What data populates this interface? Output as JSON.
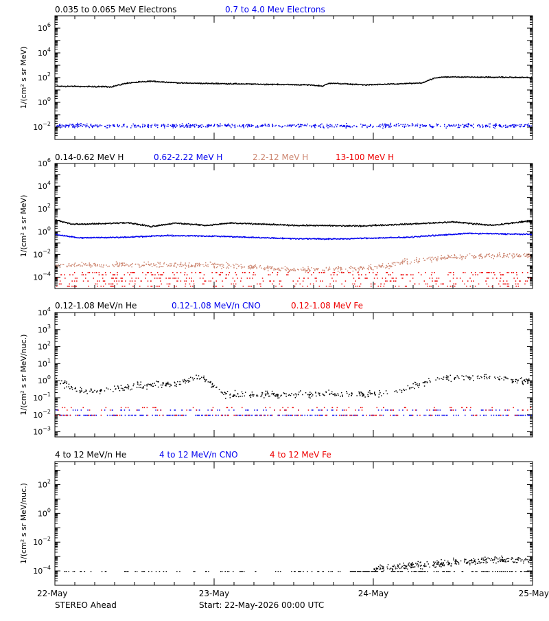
{
  "footer": {
    "spacecraft": "STEREO Ahead",
    "start": "Start: 22-May-2026 00:00 UTC"
  },
  "x_axis": {
    "tick_labels": [
      "22-May",
      "23-May",
      "24-May",
      "25-May"
    ],
    "range_days": [
      0,
      3
    ]
  },
  "colors": {
    "black": "#000000",
    "blue": "#0000ee",
    "tan": "#cd8670",
    "red": "#ee0000"
  },
  "chart_data": [
    {
      "type": "scatter",
      "ylabel": "1/(cm² s sr MeV)",
      "y_scale": "log",
      "ylim_exp": [
        -3,
        7
      ],
      "y_tick_exps": [
        -2,
        0,
        2,
        4,
        6
      ],
      "legend": [
        {
          "label": "0.035 to 0.065 MeV Electrons",
          "color": "#000000"
        },
        {
          "label": "0.7 to 4.0 Mev Electrons",
          "color": "#0000ee"
        }
      ],
      "series": [
        {
          "name": "0.035 to 0.065 MeV Electrons",
          "color": "#000000",
          "style": "dense",
          "scatter": 0.06,
          "profile": [
            [
              0,
              1.35
            ],
            [
              0.35,
              1.3
            ],
            [
              0.45,
              1.6
            ],
            [
              0.6,
              1.75
            ],
            [
              0.8,
              1.6
            ],
            [
              1.6,
              1.45
            ],
            [
              1.68,
              1.35
            ],
            [
              1.72,
              1.6
            ],
            [
              1.95,
              1.45
            ],
            [
              2.3,
              1.6
            ],
            [
              2.38,
              2.0
            ],
            [
              2.45,
              2.1
            ],
            [
              3,
              2.05
            ]
          ]
        },
        {
          "name": "0.7 to 4.0 Mev Electrons",
          "color": "#0000ee",
          "style": "sparse",
          "scatter": 0.22,
          "count": 650,
          "profile": [
            [
              0,
              -1.85
            ],
            [
              3,
              -1.85
            ]
          ]
        }
      ]
    },
    {
      "type": "scatter",
      "ylabel": "1/(cm² s sr MeV)",
      "y_scale": "log",
      "ylim_exp": [
        -5,
        6
      ],
      "y_tick_exps": [
        -4,
        -2,
        0,
        2,
        4,
        6
      ],
      "legend": [
        {
          "label": "0.14-0.62 MeV H",
          "color": "#000000"
        },
        {
          "label": "0.62-2.22 MeV H",
          "color": "#0000ee"
        },
        {
          "label": "2.2-12 MeV H",
          "color": "#cd8670"
        },
        {
          "label": "13-100 MeV H",
          "color": "#ee0000"
        }
      ],
      "series": [
        {
          "name": "0.14-0.62 MeV H",
          "color": "#000000",
          "style": "dense",
          "scatter": 0.08,
          "profile": [
            [
              0,
              1.1
            ],
            [
              0.1,
              0.7
            ],
            [
              0.3,
              0.75
            ],
            [
              0.45,
              0.85
            ],
            [
              0.6,
              0.5
            ],
            [
              0.75,
              0.8
            ],
            [
              0.95,
              0.6
            ],
            [
              1.1,
              0.8
            ],
            [
              1.5,
              0.6
            ],
            [
              1.9,
              0.55
            ],
            [
              2.2,
              0.7
            ],
            [
              2.5,
              0.9
            ],
            [
              2.75,
              0.6
            ],
            [
              2.95,
              0.95
            ],
            [
              3,
              0.9
            ]
          ]
        },
        {
          "name": "0.62-2.22 MeV H",
          "color": "#0000ee",
          "style": "dense",
          "scatter": 0.07,
          "profile": [
            [
              0,
              -0.2
            ],
            [
              0.15,
              -0.5
            ],
            [
              0.4,
              -0.45
            ],
            [
              0.7,
              -0.3
            ],
            [
              1.0,
              -0.35
            ],
            [
              1.45,
              -0.55
            ],
            [
              1.75,
              -0.6
            ],
            [
              2.2,
              -0.45
            ],
            [
              2.6,
              -0.1
            ],
            [
              3,
              -0.2
            ]
          ]
        },
        {
          "name": "2.2-12 MeV H",
          "color": "#cd8670",
          "style": "scatter",
          "scatter": 0.35,
          "count": 650,
          "profile": [
            [
              0,
              -2.9
            ],
            [
              0.6,
              -2.85
            ],
            [
              1.0,
              -2.9
            ],
            [
              1.5,
              -3.3
            ],
            [
              1.9,
              -3.25
            ],
            [
              2.05,
              -3.0
            ],
            [
              2.3,
              -2.4
            ],
            [
              2.6,
              -2.1
            ],
            [
              3,
              -2.0
            ]
          ]
        },
        {
          "name": "13-100 MeV H",
          "color": "#ee0000",
          "style": "levels",
          "count": 520,
          "levels": [
            -3.55,
            -3.75,
            -4.05,
            -4.3,
            -4.55,
            -4.75
          ],
          "profile": [
            [
              0,
              -4.0
            ],
            [
              3,
              -4.0
            ]
          ]
        }
      ]
    },
    {
      "type": "scatter",
      "ylabel": "1/(cm² s sr MeV/nuc.)",
      "y_scale": "log",
      "ylim_exp": [
        -3.3,
        4
      ],
      "y_tick_exps": [
        -3,
        -2,
        -1,
        0,
        1,
        2,
        3,
        4
      ],
      "legend": [
        {
          "label": "0.12-1.08 MeV/n He",
          "color": "#000000"
        },
        {
          "label": "0.12-1.08 MeV/n CNO",
          "color": "#0000ee"
        },
        {
          "label": "0.12-1.08 MeV Fe",
          "color": "#ee0000"
        }
      ],
      "series": [
        {
          "name": "0.12-1.08 MeV/n He",
          "color": "#000000",
          "style": "scatter",
          "scatter": 0.28,
          "count": 520,
          "floor": -1.0,
          "profile": [
            [
              0,
              0.1
            ],
            [
              0.15,
              -0.6
            ],
            [
              0.35,
              -0.5
            ],
            [
              0.5,
              -0.3
            ],
            [
              0.75,
              -0.15
            ],
            [
              0.92,
              0.3
            ],
            [
              1.05,
              -0.75
            ],
            [
              1.35,
              -0.8
            ],
            [
              1.7,
              -0.75
            ],
            [
              1.95,
              -0.8
            ],
            [
              2.15,
              -0.6
            ],
            [
              2.3,
              -0.1
            ],
            [
              2.45,
              0.2
            ],
            [
              2.75,
              0.2
            ],
            [
              2.9,
              0.0
            ],
            [
              3,
              0.05
            ]
          ]
        },
        {
          "name": "0.12-1.08 MeV/n CNO",
          "color": "#0000ee",
          "style": "levels",
          "count": 340,
          "levels": [
            -2.0,
            -2.0,
            -2.0,
            -1.7
          ],
          "profile": [
            [
              0,
              -2.0
            ],
            [
              3,
              -2.0
            ]
          ]
        },
        {
          "name": "0.12-1.08 MeV Fe",
          "color": "#ee0000",
          "style": "levels",
          "count": 180,
          "levels": [
            -2.0,
            -2.0,
            -1.7,
            -1.55
          ],
          "profile": [
            [
              0,
              -2.0
            ],
            [
              3,
              -2.0
            ]
          ]
        }
      ]
    },
    {
      "type": "scatter",
      "ylabel": "1/(cm² s sr MeV/nuc.)",
      "y_scale": "log",
      "ylim_exp": [
        -5,
        3.6
      ],
      "y_tick_exps": [
        -4,
        -2,
        0,
        2
      ],
      "legend": [
        {
          "label": "4 to 12 MeV/n He",
          "color": "#000000"
        },
        {
          "label": "4 to 12 MeV/n CNO",
          "color": "#0000ee"
        },
        {
          "label": "4 to 12 MeV Fe",
          "color": "#ee0000"
        }
      ],
      "series": [
        {
          "name": "4 to 12 MeV/n He",
          "color": "#000000",
          "style": "late",
          "count": 520,
          "levels": [
            -4.0,
            -4.0,
            -3.7,
            -3.5,
            -3.35
          ],
          "profile": [
            [
              0,
              -4.0
            ],
            [
              1.8,
              -4.0
            ],
            [
              2.1,
              -3.7
            ],
            [
              2.4,
              -3.5
            ],
            [
              2.7,
              -3.2
            ],
            [
              3,
              -3.2
            ]
          ]
        },
        {
          "name": "4 to 12 MeV/n CNO",
          "color": "#0000ee",
          "style": "levels",
          "count": 8,
          "levels": [
            -5.0
          ],
          "range": [
            2.35,
            2.65
          ],
          "profile": [
            [
              0,
              -5.0
            ],
            [
              3,
              -5.0
            ]
          ]
        },
        {
          "name": "4 to 12 MeV Fe",
          "color": "#ee0000",
          "style": "levels",
          "count": 4,
          "levels": [
            -5.0
          ],
          "range": [
            2.6,
            2.75
          ],
          "profile": [
            [
              0,
              -5.0
            ],
            [
              3,
              -5.0
            ]
          ]
        }
      ]
    }
  ]
}
